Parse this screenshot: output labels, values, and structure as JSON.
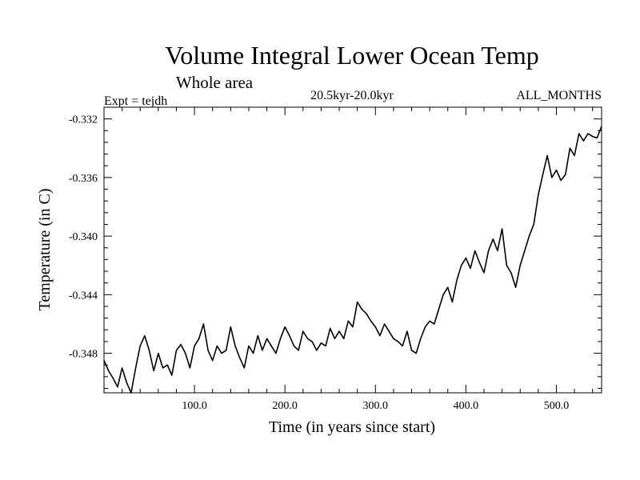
{
  "chart_data": {
    "type": "line",
    "title": "Volume Integral Lower Ocean Temp",
    "subtitle": "Whole area",
    "experiment": "Expt = tejdh",
    "period": "20.5kyr-20.0kyr",
    "months": "ALL_MONTHS",
    "xlabel": "Time (in years since start)",
    "ylabel": "Temperature (in C)",
    "xlim": [
      0,
      550
    ],
    "ylim": [
      -0.3507,
      -0.3312
    ],
    "xticks": [
      100,
      200,
      300,
      400,
      500
    ],
    "xtick_labels": [
      "100.0",
      "200.0",
      "300.0",
      "400.0",
      "500.0"
    ],
    "yticks": [
      -0.332,
      -0.336,
      -0.34,
      -0.344,
      -0.348
    ],
    "ytick_labels": [
      "-0.332",
      "-0.336",
      "-0.340",
      "-0.344",
      "-0.348"
    ],
    "grid": false,
    "series": [
      {
        "name": "Volume integral lower ocean temperature",
        "x": [
          0,
          5,
          10,
          15,
          20,
          25,
          30,
          35,
          40,
          45,
          50,
          55,
          60,
          65,
          70,
          75,
          80,
          85,
          90,
          95,
          100,
          105,
          110,
          115,
          120,
          125,
          130,
          135,
          140,
          145,
          150,
          155,
          160,
          165,
          170,
          175,
          180,
          185,
          190,
          195,
          200,
          205,
          210,
          215,
          220,
          225,
          230,
          235,
          240,
          245,
          250,
          255,
          260,
          265,
          270,
          275,
          280,
          285,
          290,
          295,
          300,
          305,
          310,
          315,
          320,
          325,
          330,
          335,
          340,
          345,
          350,
          355,
          360,
          365,
          370,
          375,
          380,
          385,
          390,
          395,
          400,
          405,
          410,
          415,
          420,
          425,
          430,
          435,
          440,
          445,
          450,
          455,
          460,
          465,
          470,
          475,
          480,
          485,
          490,
          495,
          500,
          505,
          510,
          515,
          520,
          525,
          530,
          535,
          540,
          545,
          550
        ],
        "y": [
          -0.3485,
          -0.3492,
          -0.3497,
          -0.3503,
          -0.349,
          -0.35,
          -0.3507,
          -0.349,
          -0.3475,
          -0.3468,
          -0.3478,
          -0.3492,
          -0.348,
          -0.349,
          -0.3488,
          -0.3495,
          -0.3478,
          -0.3474,
          -0.348,
          -0.349,
          -0.3475,
          -0.347,
          -0.346,
          -0.3478,
          -0.3485,
          -0.3475,
          -0.348,
          -0.3478,
          -0.3462,
          -0.3475,
          -0.3483,
          -0.349,
          -0.3475,
          -0.348,
          -0.3468,
          -0.3478,
          -0.347,
          -0.3475,
          -0.348,
          -0.347,
          -0.3462,
          -0.3468,
          -0.3475,
          -0.3478,
          -0.3465,
          -0.347,
          -0.3472,
          -0.3478,
          -0.3473,
          -0.3475,
          -0.3463,
          -0.347,
          -0.3465,
          -0.347,
          -0.3458,
          -0.3462,
          -0.3445,
          -0.345,
          -0.3453,
          -0.3458,
          -0.3462,
          -0.3468,
          -0.346,
          -0.3465,
          -0.347,
          -0.3472,
          -0.3475,
          -0.3465,
          -0.3478,
          -0.348,
          -0.347,
          -0.3462,
          -0.3458,
          -0.346,
          -0.345,
          -0.344,
          -0.3435,
          -0.3445,
          -0.343,
          -0.342,
          -0.3415,
          -0.3422,
          -0.341,
          -0.3418,
          -0.3425,
          -0.341,
          -0.3402,
          -0.341,
          -0.3395,
          -0.342,
          -0.3425,
          -0.3435,
          -0.342,
          -0.341,
          -0.34,
          -0.3392,
          -0.3372,
          -0.3358,
          -0.3345,
          -0.336,
          -0.3355,
          -0.3362,
          -0.3358,
          -0.334,
          -0.3345,
          -0.333,
          -0.3335,
          -0.333,
          -0.3332,
          -0.3333,
          -0.3325
        ]
      }
    ]
  }
}
